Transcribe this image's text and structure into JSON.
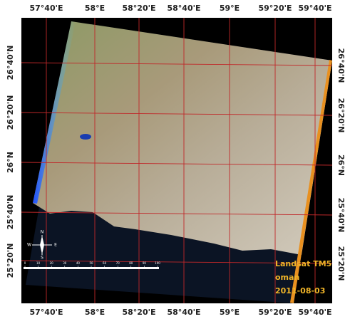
{
  "graticule": {
    "top_labels": [
      "57°40'E",
      "58°E",
      "58°20'E",
      "58°40'E",
      "59°E",
      "59°20'E",
      "59°40'E"
    ],
    "bottom_labels": [
      "57°40'E",
      "58°E",
      "58°20'E",
      "58°40'E",
      "59°E",
      "59°20'E",
      "59°40'E"
    ],
    "left_labels": [
      "26°40'N",
      "26°20'N",
      "26°N",
      "25°40'N",
      "25°20'N"
    ],
    "right_labels": [
      "26°40'N",
      "26°20'N",
      "26°N",
      "25°40'N",
      "25°20'N"
    ]
  },
  "compass": {
    "n": "N",
    "e": "E",
    "s": "S",
    "w": "W"
  },
  "scale_bar": {
    "labels": [
      "0",
      "10",
      "20",
      "30",
      "40",
      "50",
      "60",
      "70",
      "80",
      "90",
      "100"
    ]
  },
  "annotation": {
    "lines": [
      "Landsat TM5",
      "oman",
      "2011-08-03"
    ]
  }
}
